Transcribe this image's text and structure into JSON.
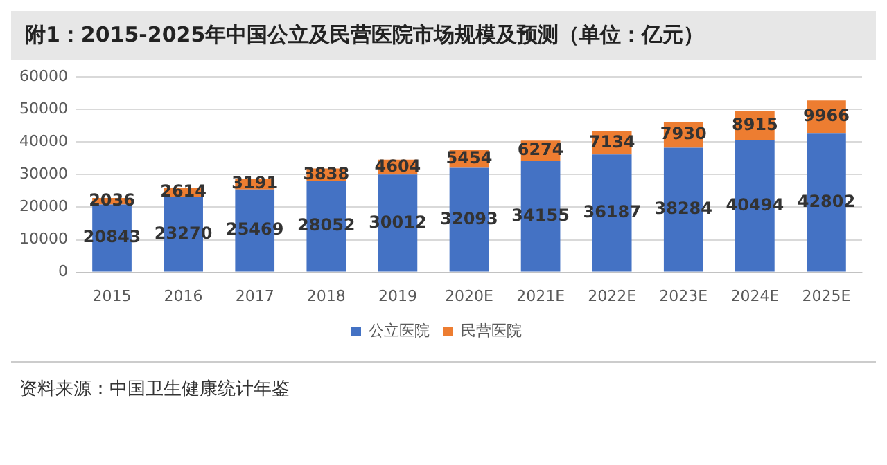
{
  "chart_data": {
    "type": "bar",
    "title": "附1：2015-2025年中国公立及民营医院市场规模及预测（单位：亿元）",
    "categories": [
      "2015",
      "2016",
      "2017",
      "2018",
      "2019",
      "2020E",
      "2021E",
      "2022E",
      "2023E",
      "2024E",
      "2025E"
    ],
    "series": [
      {
        "name": "公立医院",
        "color": "#4472c4",
        "values": [
          20843,
          23270,
          25469,
          28052,
          30012,
          32093,
          34155,
          36187,
          38284,
          40494,
          42802
        ]
      },
      {
        "name": "民营医院",
        "color": "#ed7d31",
        "values": [
          2036,
          2614,
          3191,
          3838,
          4604,
          5454,
          6274,
          7134,
          7930,
          8915,
          9966
        ]
      }
    ],
    "stacked": true,
    "ylim": [
      0,
      60000
    ],
    "yticks": [
      0,
      10000,
      20000,
      30000,
      40000,
      50000,
      60000
    ],
    "grid": "y",
    "legend": "bottom",
    "data_labels": true,
    "annotations": [
      "资料来源：中国卫生健康统计年鉴"
    ]
  }
}
